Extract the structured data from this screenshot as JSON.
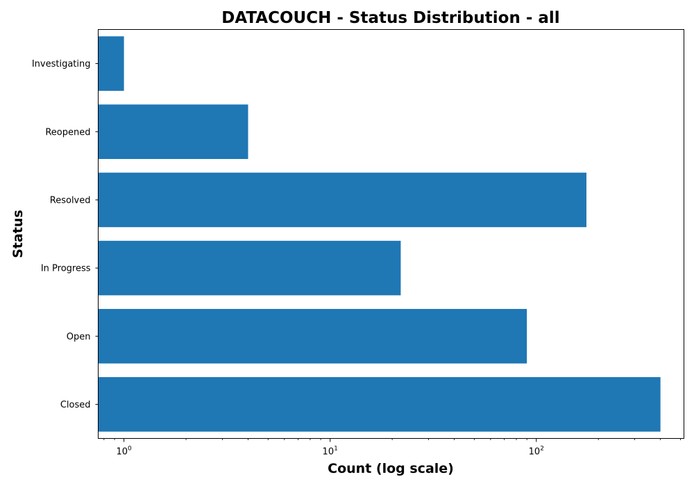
{
  "chart_data": {
    "type": "bar",
    "orientation": "horizontal",
    "title": "DATACOUCH - Status Distribution - all",
    "xlabel": "Count (log scale)",
    "ylabel": "Status",
    "x_scale": "log",
    "xlim": [
      0.75,
      520
    ],
    "x_ticks": [
      {
        "value": 1,
        "base": "10",
        "exponent": "0"
      },
      {
        "value": 10,
        "base": "10",
        "exponent": "1"
      },
      {
        "value": 100,
        "base": "10",
        "exponent": "2"
      }
    ],
    "categories": [
      "Investigating",
      "Reopened",
      "Resolved",
      "In Progress",
      "Open",
      "Closed"
    ],
    "values": [
      1,
      4,
      175,
      22,
      90,
      400
    ],
    "bar_color": "#1f77b4",
    "grid": false
  }
}
